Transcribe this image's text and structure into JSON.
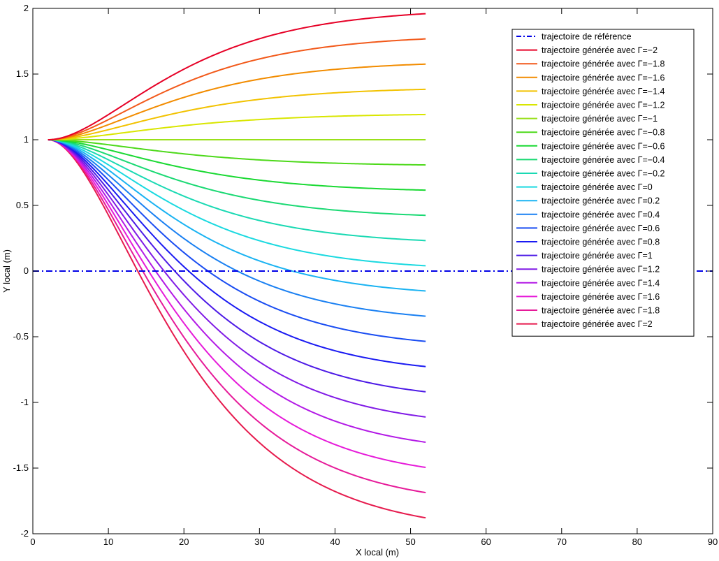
{
  "chart_data": {
    "type": "line",
    "xlabel": "X local (m)",
    "ylabel": "Y local (m)",
    "xlim": [
      0,
      90
    ],
    "ylim": [
      -2,
      2
    ],
    "x_ticks": [
      "0",
      "10",
      "20",
      "30",
      "40",
      "50",
      "60",
      "70",
      "80",
      "90"
    ],
    "y_ticks": [
      "2",
      "1.5",
      "1",
      "0.5",
      "0",
      "-0.5",
      "-1",
      "-1.5",
      "-2"
    ],
    "grid": false,
    "legend_position": "top-right",
    "reference": {
      "name": "trajectoire de référence",
      "y": 0,
      "x_range": [
        0,
        90
      ],
      "color": "#0000e6",
      "style": "dash-dot"
    },
    "generated": {
      "start": [
        2,
        1
      ],
      "x_end": 52,
      "decay_length": 10,
      "series": [
        {
          "name": "trajectoire générée avec Γ=−2",
          "gamma": -2,
          "final_y": 2,
          "color": "#e60026"
        },
        {
          "name": "trajectoire générée avec Γ=−1.8",
          "gamma": -1.8,
          "final_y": 1.8,
          "color": "#f2591a"
        },
        {
          "name": "trajectoire générée avec Γ=−1.6",
          "gamma": -1.6,
          "final_y": 1.6,
          "color": "#f28c00"
        },
        {
          "name": "trajectoire générée avec Γ=−1.4",
          "gamma": -1.4,
          "final_y": 1.4,
          "color": "#f2c200"
        },
        {
          "name": "trajectoire générée avec Γ=−1.2",
          "gamma": -1.2,
          "final_y": 1.2,
          "color": "#d9e600"
        },
        {
          "name": "trajectoire générée avec Γ=−1",
          "gamma": -1,
          "final_y": 1,
          "color": "#99e01a"
        },
        {
          "name": "trajectoire générée avec Γ=−0.8",
          "gamma": -0.8,
          "final_y": 0.8,
          "color": "#4dd91a"
        },
        {
          "name": "trajectoire générée avec Γ=−0.6",
          "gamma": -0.6,
          "final_y": 0.6,
          "color": "#1ad933"
        },
        {
          "name": "trajectoire générée avec Γ=−0.4",
          "gamma": -0.4,
          "final_y": 0.4,
          "color": "#1ad973"
        },
        {
          "name": "trajectoire générée avec Γ=−0.2",
          "gamma": -0.2,
          "final_y": 0.2,
          "color": "#1ad9b3"
        },
        {
          "name": "trajectoire générée avec Γ=0",
          "gamma": 0,
          "final_y": 0,
          "color": "#1ad9e0"
        },
        {
          "name": "trajectoire générée avec Γ=0.2",
          "gamma": 0.2,
          "final_y": -0.2,
          "color": "#1ab3f2"
        },
        {
          "name": "trajectoire générée avec Γ=0.4",
          "gamma": 0.4,
          "final_y": -0.4,
          "color": "#1a80f2"
        },
        {
          "name": "trajectoire générée avec Γ=0.6",
          "gamma": 0.6,
          "final_y": -0.6,
          "color": "#1a4df2"
        },
        {
          "name": "trajectoire générée avec Γ=0.8",
          "gamma": 0.8,
          "final_y": -0.8,
          "color": "#1a1af2"
        },
        {
          "name": "trajectoire générée avec Γ=1",
          "gamma": 1,
          "final_y": -1,
          "color": "#4d1ae6"
        },
        {
          "name": "trajectoire générée avec Γ=1.2",
          "gamma": 1.2,
          "final_y": -1.2,
          "color": "#801ae6"
        },
        {
          "name": "trajectoire générée avec Γ=1.4",
          "gamma": 1.4,
          "final_y": -1.4,
          "color": "#b31ae6"
        },
        {
          "name": "trajectoire générée avec Γ=1.6",
          "gamma": 1.6,
          "final_y": -1.6,
          "color": "#e61ad9"
        },
        {
          "name": "trajectoire générée avec Γ=1.8",
          "gamma": 1.8,
          "final_y": -1.8,
          "color": "#e61a99"
        },
        {
          "name": "trajectoire générée avec Γ=2",
          "gamma": 2,
          "final_y": -2,
          "color": "#e61a4d"
        }
      ]
    }
  }
}
